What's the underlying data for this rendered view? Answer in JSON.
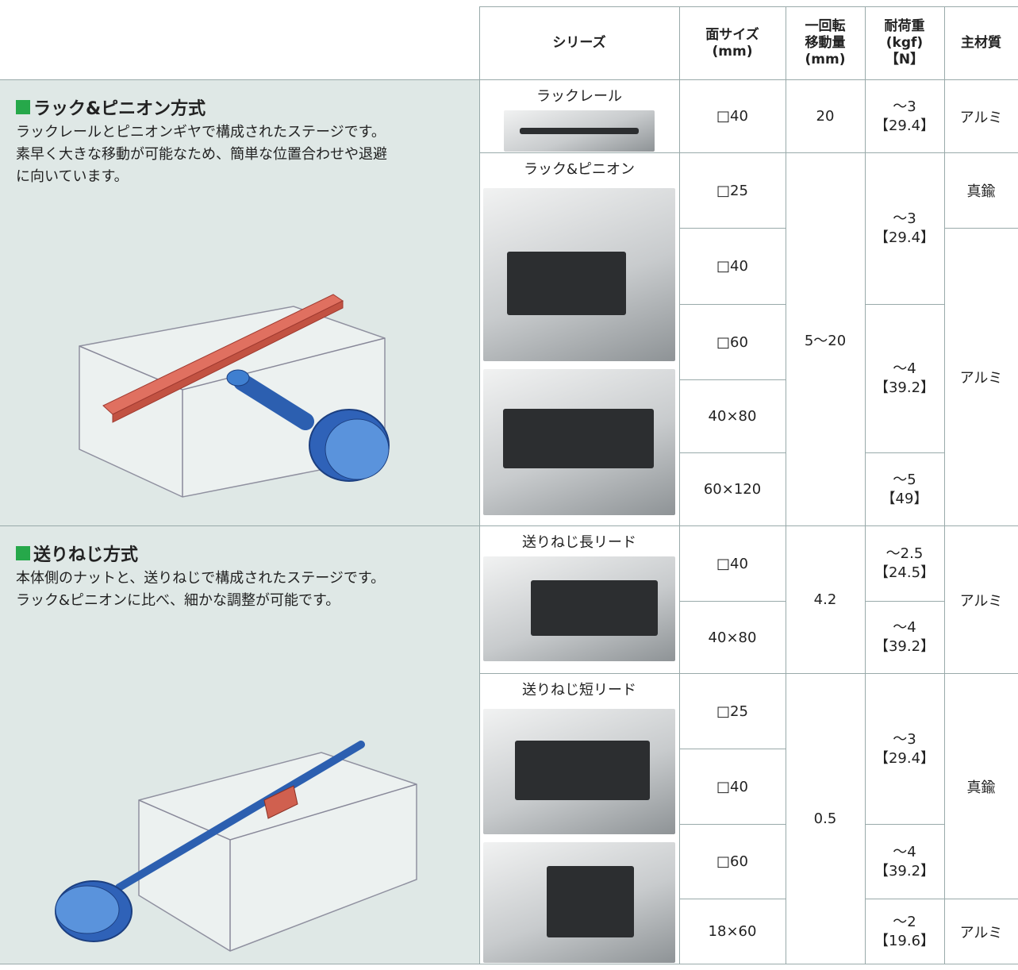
{
  "header": {
    "series": "シリーズ",
    "size": [
      "面サイズ",
      "(mm)"
    ],
    "move": [
      "一回転",
      "移動量",
      "(mm)"
    ],
    "load": [
      "耐荷重",
      "(kgf)",
      "【N】"
    ],
    "material": "主材質"
  },
  "sections": [
    {
      "title": "ラック&ピニオン方式",
      "lines": [
        "ラックレールとピニオンギヤで構成されたステージです。",
        "素早く大きな移動が可能なため、簡単な位置合わせや退避",
        "に向いています。"
      ]
    },
    {
      "title": "送りねじ方式",
      "lines": [
        "本体側のナットと、送りねじで構成されたステージです。",
        "ラック&ピニオンに比べ、細かな調整が可能です。"
      ]
    }
  ],
  "series": [
    "ラックレール",
    "ラック&ピニオン",
    "送りねじ長リード",
    "送りねじ短リード"
  ],
  "sizes": [
    "□40",
    "□25",
    "□40",
    "□60",
    "40×80",
    "60×120",
    "□40",
    "40×80",
    "□25",
    "□40",
    "□60",
    "18×60"
  ],
  "moves": [
    "20",
    "5～20",
    "4.2",
    "0.5"
  ],
  "loads": [
    {
      "kgf": "～3",
      "n": "【29.4】"
    },
    {
      "kgf": "～3",
      "n": "【29.4】"
    },
    {
      "kgf": "～4",
      "n": "【39.2】"
    },
    {
      "kgf": "～5",
      "n": "【49】"
    },
    {
      "kgf": "～2.5",
      "n": "【24.5】"
    },
    {
      "kgf": "～4",
      "n": "【39.2】"
    },
    {
      "kgf": "～3",
      "n": "【29.4】"
    },
    {
      "kgf": "～4",
      "n": "【39.2】"
    },
    {
      "kgf": "～2",
      "n": "【19.6】"
    }
  ],
  "materials": [
    "アルミ",
    "真鍮",
    "アルミ",
    "アルミ",
    "真鍮",
    "アルミ"
  ]
}
